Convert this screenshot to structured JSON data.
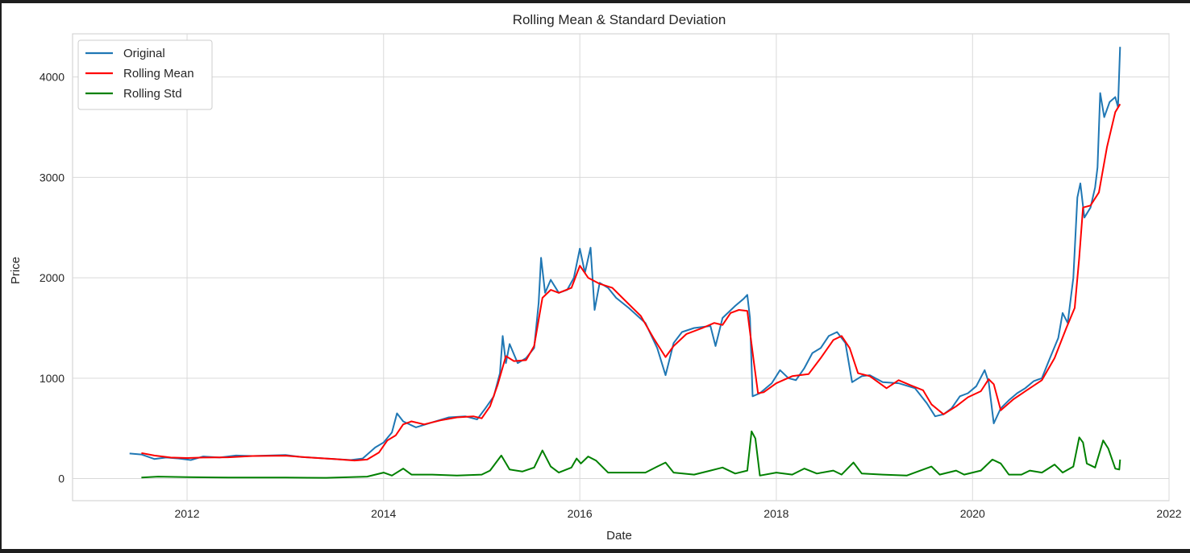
{
  "chart_data": {
    "type": "line",
    "title": "Rolling Mean & Standard Deviation",
    "xlabel": "Date",
    "ylabel": "Price",
    "xlim": [
      "2010-11-01",
      "2022-01-01"
    ],
    "ylim": [
      -220,
      4430
    ],
    "x_ticks": [
      "2012",
      "2014",
      "2016",
      "2018",
      "2020",
      "2022"
    ],
    "y_ticks": [
      "0",
      "1000",
      "2000",
      "3000",
      "4000"
    ],
    "grid": true,
    "legend_position": "top-left",
    "series": [
      {
        "name": "Original",
        "color": "#1f77b4",
        "points": [
          [
            "2011-06-01",
            250
          ],
          [
            "2011-07-15",
            240
          ],
          [
            "2011-09-01",
            195
          ],
          [
            "2011-10-15",
            210
          ],
          [
            "2011-12-01",
            200
          ],
          [
            "2012-01-15",
            185
          ],
          [
            "2012-03-01",
            220
          ],
          [
            "2012-05-01",
            210
          ],
          [
            "2012-07-01",
            230
          ],
          [
            "2012-09-01",
            225
          ],
          [
            "2012-11-01",
            230
          ],
          [
            "2013-01-01",
            235
          ],
          [
            "2013-03-01",
            215
          ],
          [
            "2013-06-01",
            200
          ],
          [
            "2013-09-01",
            185
          ],
          [
            "2013-10-15",
            200
          ],
          [
            "2013-12-01",
            310
          ],
          [
            "2014-01-01",
            360
          ],
          [
            "2014-02-01",
            460
          ],
          [
            "2014-02-20",
            650
          ],
          [
            "2014-03-15",
            570
          ],
          [
            "2014-05-01",
            510
          ],
          [
            "2014-07-01",
            560
          ],
          [
            "2014-09-01",
            610
          ],
          [
            "2014-11-01",
            620
          ],
          [
            "2014-12-15",
            590
          ],
          [
            "2015-01-15",
            700
          ],
          [
            "2015-02-15",
            820
          ],
          [
            "2015-03-10",
            1050
          ],
          [
            "2015-03-20",
            1420
          ],
          [
            "2015-04-01",
            1150
          ],
          [
            "2015-04-15",
            1340
          ],
          [
            "2015-05-15",
            1150
          ],
          [
            "2015-06-15",
            1200
          ],
          [
            "2015-07-15",
            1300
          ],
          [
            "2015-08-01",
            1750
          ],
          [
            "2015-08-10",
            2200
          ],
          [
            "2015-08-25",
            1850
          ],
          [
            "2015-09-15",
            1980
          ],
          [
            "2015-10-15",
            1850
          ],
          [
            "2015-11-15",
            1880
          ],
          [
            "2015-12-10",
            2000
          ],
          [
            "2016-01-01",
            2290
          ],
          [
            "2016-01-20",
            2050
          ],
          [
            "2016-02-10",
            2300
          ],
          [
            "2016-02-25",
            1680
          ],
          [
            "2016-03-15",
            1950
          ],
          [
            "2016-04-15",
            1900
          ],
          [
            "2016-05-15",
            1800
          ],
          [
            "2016-07-01",
            1700
          ],
          [
            "2016-09-01",
            1550
          ],
          [
            "2016-10-15",
            1300
          ],
          [
            "2016-11-15",
            1030
          ],
          [
            "2016-12-15",
            1350
          ],
          [
            "2017-01-15",
            1460
          ],
          [
            "2017-03-01",
            1500
          ],
          [
            "2017-05-01",
            1520
          ],
          [
            "2017-05-20",
            1320
          ],
          [
            "2017-06-15",
            1600
          ],
          [
            "2017-08-01",
            1720
          ],
          [
            "2017-09-01",
            1790
          ],
          [
            "2017-09-15",
            1830
          ],
          [
            "2017-09-25",
            1600
          ],
          [
            "2017-10-05",
            820
          ],
          [
            "2017-11-01",
            850
          ],
          [
            "2017-12-15",
            950
          ],
          [
            "2018-01-15",
            1080
          ],
          [
            "2018-02-15",
            1000
          ],
          [
            "2018-03-15",
            980
          ],
          [
            "2018-04-15",
            1100
          ],
          [
            "2018-05-15",
            1250
          ],
          [
            "2018-06-15",
            1300
          ],
          [
            "2018-07-15",
            1420
          ],
          [
            "2018-08-15",
            1460
          ],
          [
            "2018-09-15",
            1350
          ],
          [
            "2018-10-10",
            960
          ],
          [
            "2018-11-15",
            1020
          ],
          [
            "2018-12-15",
            1030
          ],
          [
            "2019-02-01",
            960
          ],
          [
            "2019-04-01",
            950
          ],
          [
            "2019-06-01",
            900
          ],
          [
            "2019-07-15",
            750
          ],
          [
            "2019-08-15",
            620
          ],
          [
            "2019-09-15",
            640
          ],
          [
            "2019-10-15",
            700
          ],
          [
            "2019-11-15",
            820
          ],
          [
            "2019-12-15",
            850
          ],
          [
            "2020-01-15",
            920
          ],
          [
            "2020-02-15",
            1080
          ],
          [
            "2020-03-01",
            960
          ],
          [
            "2020-03-20",
            550
          ],
          [
            "2020-04-15",
            700
          ],
          [
            "2020-05-15",
            780
          ],
          [
            "2020-06-15",
            850
          ],
          [
            "2020-07-15",
            900
          ],
          [
            "2020-08-15",
            970
          ],
          [
            "2020-09-15",
            1000
          ],
          [
            "2020-10-15",
            1200
          ],
          [
            "2020-11-15",
            1400
          ],
          [
            "2020-12-01",
            1650
          ],
          [
            "2020-12-20",
            1550
          ],
          [
            "2021-01-10",
            2000
          ],
          [
            "2021-01-25",
            2800
          ],
          [
            "2021-02-05",
            2940
          ],
          [
            "2021-02-20",
            2600
          ],
          [
            "2021-03-15",
            2700
          ],
          [
            "2021-04-01",
            2900
          ],
          [
            "2021-04-10",
            3100
          ],
          [
            "2021-04-20",
            3840
          ],
          [
            "2021-05-05",
            3600
          ],
          [
            "2021-05-25",
            3750
          ],
          [
            "2021-06-15",
            3800
          ],
          [
            "2021-06-25",
            3700
          ],
          [
            "2021-07-03",
            4300
          ]
        ]
      },
      {
        "name": "Rolling Mean",
        "color": "#ff0000",
        "points": [
          [
            "2011-07-15",
            255
          ],
          [
            "2011-09-01",
            230
          ],
          [
            "2011-11-01",
            210
          ],
          [
            "2012-01-01",
            205
          ],
          [
            "2012-03-01",
            210
          ],
          [
            "2012-06-01",
            212
          ],
          [
            "2012-09-01",
            225
          ],
          [
            "2013-01-01",
            228
          ],
          [
            "2013-04-01",
            210
          ],
          [
            "2013-07-01",
            195
          ],
          [
            "2013-09-15",
            180
          ],
          [
            "2013-11-01",
            190
          ],
          [
            "2013-12-15",
            260
          ],
          [
            "2014-01-15",
            380
          ],
          [
            "2014-02-15",
            430
          ],
          [
            "2014-03-15",
            540
          ],
          [
            "2014-04-15",
            570
          ],
          [
            "2014-06-01",
            540
          ],
          [
            "2014-08-01",
            580
          ],
          [
            "2014-10-01",
            610
          ],
          [
            "2014-12-01",
            620
          ],
          [
            "2015-01-01",
            600
          ],
          [
            "2015-02-01",
            720
          ],
          [
            "2015-03-01",
            930
          ],
          [
            "2015-04-01",
            1220
          ],
          [
            "2015-05-01",
            1170
          ],
          [
            "2015-06-15",
            1180
          ],
          [
            "2015-07-15",
            1320
          ],
          [
            "2015-08-15",
            1800
          ],
          [
            "2015-09-15",
            1880
          ],
          [
            "2015-10-15",
            1850
          ],
          [
            "2015-12-01",
            1900
          ],
          [
            "2016-01-01",
            2120
          ],
          [
            "2016-02-01",
            2000
          ],
          [
            "2016-03-15",
            1940
          ],
          [
            "2016-05-01",
            1900
          ],
          [
            "2016-06-15",
            1780
          ],
          [
            "2016-08-15",
            1620
          ],
          [
            "2016-10-01",
            1400
          ],
          [
            "2016-11-15",
            1210
          ],
          [
            "2016-12-15",
            1320
          ],
          [
            "2017-02-01",
            1440
          ],
          [
            "2017-04-01",
            1500
          ],
          [
            "2017-05-15",
            1550
          ],
          [
            "2017-06-15",
            1530
          ],
          [
            "2017-07-15",
            1650
          ],
          [
            "2017-08-15",
            1680
          ],
          [
            "2017-09-15",
            1670
          ],
          [
            "2017-10-10",
            1150
          ],
          [
            "2017-10-25",
            850
          ],
          [
            "2017-11-15",
            860
          ],
          [
            "2018-01-01",
            950
          ],
          [
            "2018-03-01",
            1020
          ],
          [
            "2018-05-01",
            1040
          ],
          [
            "2018-06-15",
            1200
          ],
          [
            "2018-08-01",
            1380
          ],
          [
            "2018-09-01",
            1420
          ],
          [
            "2018-10-01",
            1300
          ],
          [
            "2018-11-01",
            1050
          ],
          [
            "2018-12-15",
            1020
          ],
          [
            "2019-02-15",
            900
          ],
          [
            "2019-04-01",
            980
          ],
          [
            "2019-05-15",
            930
          ],
          [
            "2019-07-01",
            880
          ],
          [
            "2019-08-01",
            740
          ],
          [
            "2019-09-15",
            640
          ],
          [
            "2019-11-01",
            720
          ],
          [
            "2019-12-15",
            810
          ],
          [
            "2020-02-01",
            870
          ],
          [
            "2020-03-01",
            990
          ],
          [
            "2020-03-20",
            940
          ],
          [
            "2020-04-15",
            680
          ],
          [
            "2020-06-01",
            790
          ],
          [
            "2020-08-01",
            900
          ],
          [
            "2020-09-15",
            980
          ],
          [
            "2020-11-01",
            1200
          ],
          [
            "2020-12-15",
            1500
          ],
          [
            "2021-01-15",
            1700
          ],
          [
            "2021-02-01",
            2200
          ],
          [
            "2021-02-15",
            2700
          ],
          [
            "2021-03-15",
            2720
          ],
          [
            "2021-04-15",
            2850
          ],
          [
            "2021-05-15",
            3300
          ],
          [
            "2021-06-15",
            3650
          ],
          [
            "2021-07-03",
            3730
          ]
        ]
      },
      {
        "name": "Rolling Std",
        "color": "#008000",
        "points": [
          [
            "2011-07-15",
            10
          ],
          [
            "2011-09-15",
            20
          ],
          [
            "2012-01-01",
            15
          ],
          [
            "2012-06-01",
            10
          ],
          [
            "2013-01-01",
            10
          ],
          [
            "2013-06-01",
            8
          ],
          [
            "2013-11-01",
            20
          ],
          [
            "2014-01-01",
            60
          ],
          [
            "2014-02-01",
            30
          ],
          [
            "2014-03-15",
            100
          ],
          [
            "2014-04-15",
            40
          ],
          [
            "2014-07-01",
            40
          ],
          [
            "2014-10-01",
            30
          ],
          [
            "2015-01-01",
            40
          ],
          [
            "2015-02-01",
            80
          ],
          [
            "2015-03-15",
            230
          ],
          [
            "2015-04-15",
            90
          ],
          [
            "2015-06-01",
            70
          ],
          [
            "2015-07-15",
            110
          ],
          [
            "2015-08-15",
            280
          ],
          [
            "2015-09-15",
            120
          ],
          [
            "2015-10-15",
            60
          ],
          [
            "2015-12-01",
            110
          ],
          [
            "2015-12-20",
            200
          ],
          [
            "2016-01-05",
            150
          ],
          [
            "2016-02-01",
            220
          ],
          [
            "2016-03-01",
            180
          ],
          [
            "2016-04-15",
            60
          ],
          [
            "2016-07-01",
            60
          ],
          [
            "2016-09-01",
            60
          ],
          [
            "2016-10-15",
            120
          ],
          [
            "2016-11-15",
            160
          ],
          [
            "2016-12-15",
            60
          ],
          [
            "2017-03-01",
            40
          ],
          [
            "2017-05-01",
            80
          ],
          [
            "2017-06-15",
            110
          ],
          [
            "2017-08-01",
            50
          ],
          [
            "2017-09-15",
            80
          ],
          [
            "2017-10-01",
            470
          ],
          [
            "2017-10-15",
            400
          ],
          [
            "2017-11-01",
            30
          ],
          [
            "2018-01-01",
            60
          ],
          [
            "2018-03-01",
            40
          ],
          [
            "2018-04-15",
            100
          ],
          [
            "2018-06-01",
            50
          ],
          [
            "2018-08-01",
            80
          ],
          [
            "2018-09-01",
            40
          ],
          [
            "2018-10-15",
            160
          ],
          [
            "2018-11-15",
            50
          ],
          [
            "2019-02-01",
            40
          ],
          [
            "2019-05-01",
            30
          ],
          [
            "2019-08-01",
            120
          ],
          [
            "2019-09-01",
            40
          ],
          [
            "2019-11-01",
            80
          ],
          [
            "2019-12-01",
            40
          ],
          [
            "2020-02-01",
            80
          ],
          [
            "2020-03-15",
            190
          ],
          [
            "2020-04-15",
            150
          ],
          [
            "2020-05-15",
            40
          ],
          [
            "2020-07-01",
            40
          ],
          [
            "2020-08-01",
            80
          ],
          [
            "2020-09-15",
            60
          ],
          [
            "2020-11-01",
            140
          ],
          [
            "2020-12-01",
            60
          ],
          [
            "2021-01-10",
            120
          ],
          [
            "2021-02-01",
            410
          ],
          [
            "2021-02-15",
            360
          ],
          [
            "2021-03-01",
            150
          ],
          [
            "2021-04-01",
            110
          ],
          [
            "2021-05-01",
            380
          ],
          [
            "2021-05-20",
            300
          ],
          [
            "2021-06-15",
            100
          ],
          [
            "2021-06-30",
            90
          ],
          [
            "2021-07-03",
            190
          ]
        ]
      }
    ]
  }
}
